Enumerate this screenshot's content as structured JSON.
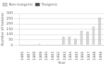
{
  "chart_data": {
    "type": "bar",
    "categories": [
      "1986",
      "1987",
      "1988",
      "1989",
      "1990",
      "1991",
      "1992",
      "1993",
      "1994",
      "1995",
      "1996",
      "1997",
      "1998",
      "1999"
    ],
    "series": [
      {
        "name": "Non-toxigenic",
        "color": "#d3d3d3",
        "values": [
          5,
          5,
          5,
          12,
          5,
          5,
          5,
          80,
          80,
          60,
          135,
          130,
          175,
          260
        ]
      },
      {
        "name": "Toxigenic",
        "color": "#444444",
        "values": [
          2,
          2,
          2,
          3,
          2,
          2,
          2,
          5,
          5,
          4,
          4,
          4,
          4,
          4
        ]
      }
    ],
    "xlabel": "Year",
    "ylabel": "Number of isolates",
    "ylim": [
      0,
      300
    ],
    "yticks": [
      0,
      50,
      100,
      150,
      200,
      250,
      300
    ],
    "grid": true,
    "legend": "upper left"
  }
}
